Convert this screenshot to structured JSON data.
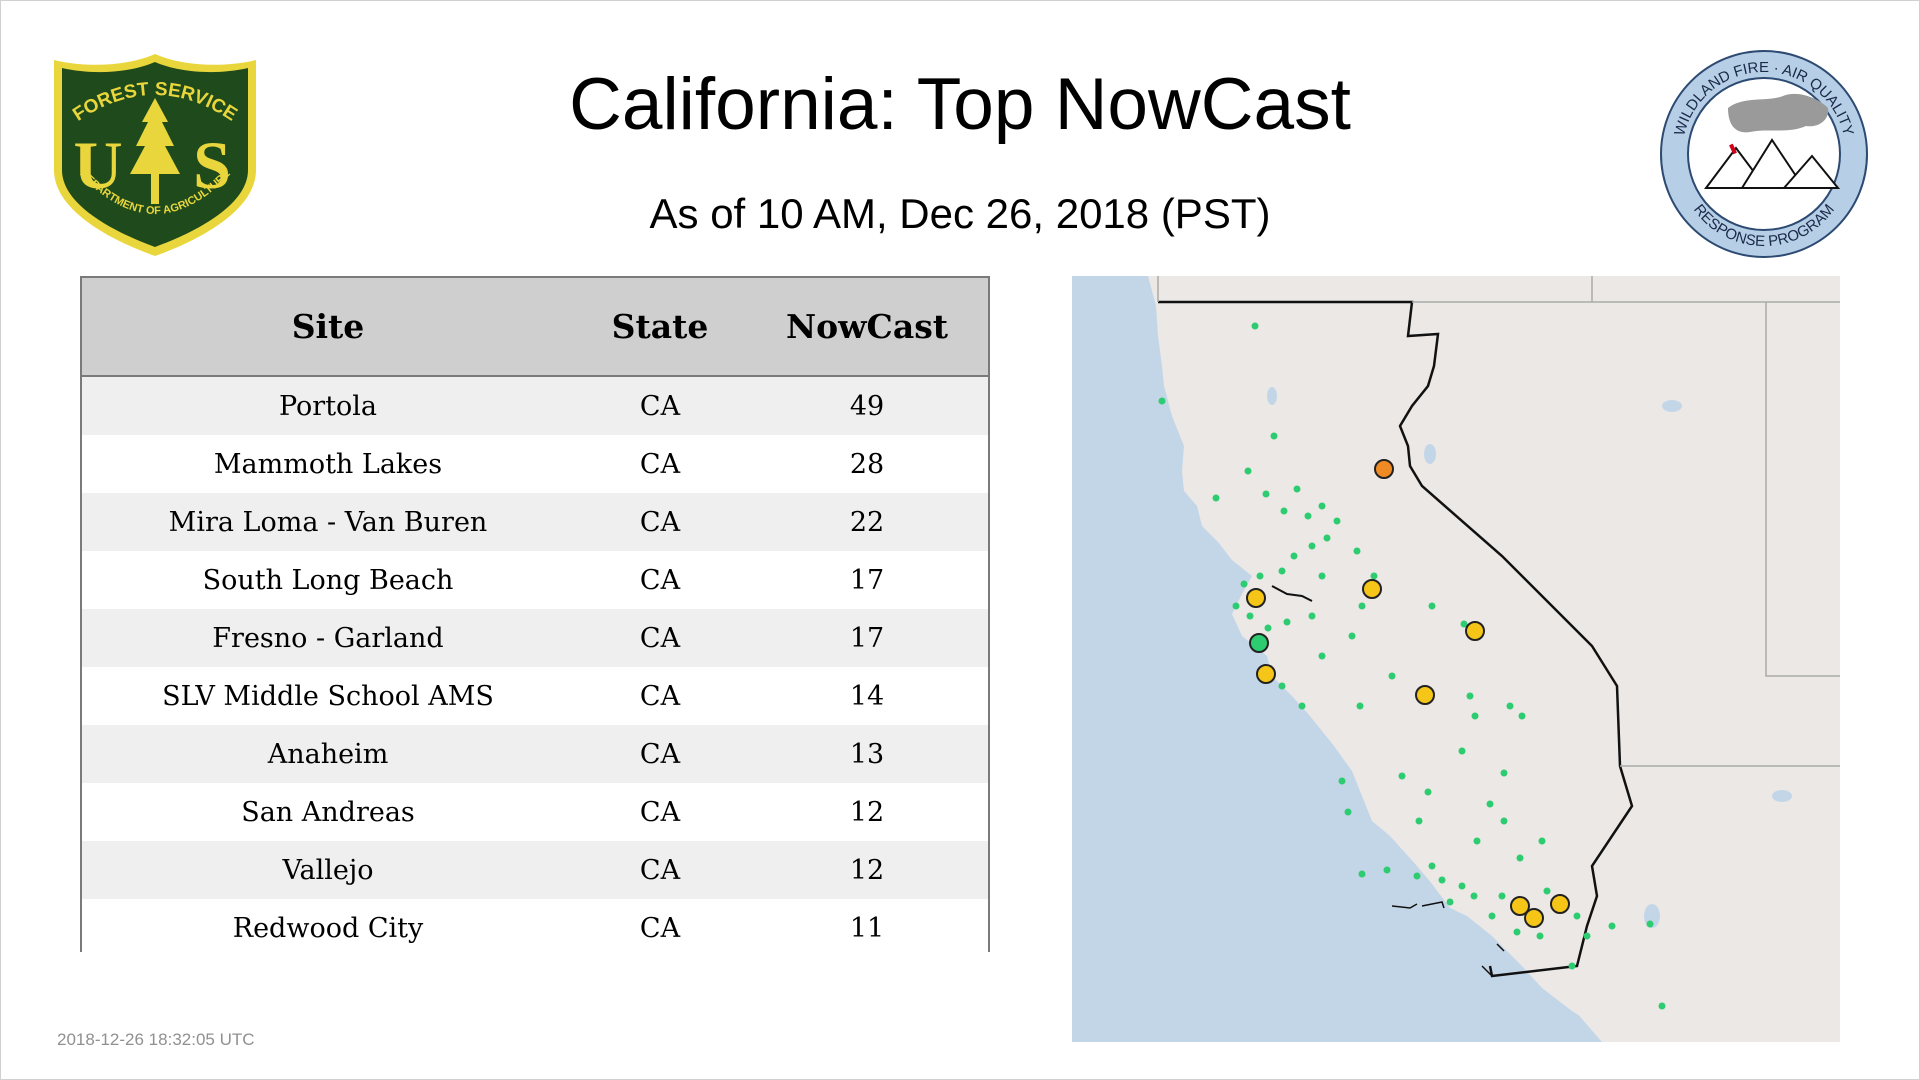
{
  "title": "California: Top NowCast",
  "subtitle": "As of 10 AM, Dec 26, 2018 (PST)",
  "timestamp": "2018-12-26 18:32:05 UTC",
  "logos": {
    "usfs": {
      "top_text": "FOREST SERVICE",
      "letters": "US",
      "bottom_text": "DEPARTMENT OF AGRICULTURE",
      "color_green": "#1f4a1c",
      "color_gold": "#e9d63c"
    },
    "wfaq": {
      "top_text": "WILDLAND FIRE · AIR QUALITY",
      "bottom_text": "RESPONSE PROGRAM",
      "ring_color": "#b7cfe6"
    }
  },
  "table": {
    "headers": {
      "site": "Site",
      "state": "State",
      "nowcast": "NowCast"
    },
    "rows": [
      {
        "site": "Portola",
        "state": "CA",
        "nowcast": "49"
      },
      {
        "site": "Mammoth Lakes",
        "state": "CA",
        "nowcast": "28"
      },
      {
        "site": "Mira Loma - Van Buren",
        "state": "CA",
        "nowcast": "22"
      },
      {
        "site": "South Long Beach",
        "state": "CA",
        "nowcast": "17"
      },
      {
        "site": "Fresno - Garland",
        "state": "CA",
        "nowcast": "17"
      },
      {
        "site": "SLV Middle School AMS",
        "state": "CA",
        "nowcast": "14"
      },
      {
        "site": "Anaheim",
        "state": "CA",
        "nowcast": "13"
      },
      {
        "site": "San Andreas",
        "state": "CA",
        "nowcast": "12"
      },
      {
        "site": "Vallejo",
        "state": "CA",
        "nowcast": "12"
      },
      {
        "site": "Redwood City",
        "state": "CA",
        "nowcast": "11"
      }
    ]
  },
  "map": {
    "colors": {
      "ocean": "#c3d6e8",
      "land": "#ebe8e6",
      "good": "#2ecc71",
      "moderate": "#f5c518",
      "usg": "#f08a24",
      "marker_outline": "#222222"
    }
  }
}
